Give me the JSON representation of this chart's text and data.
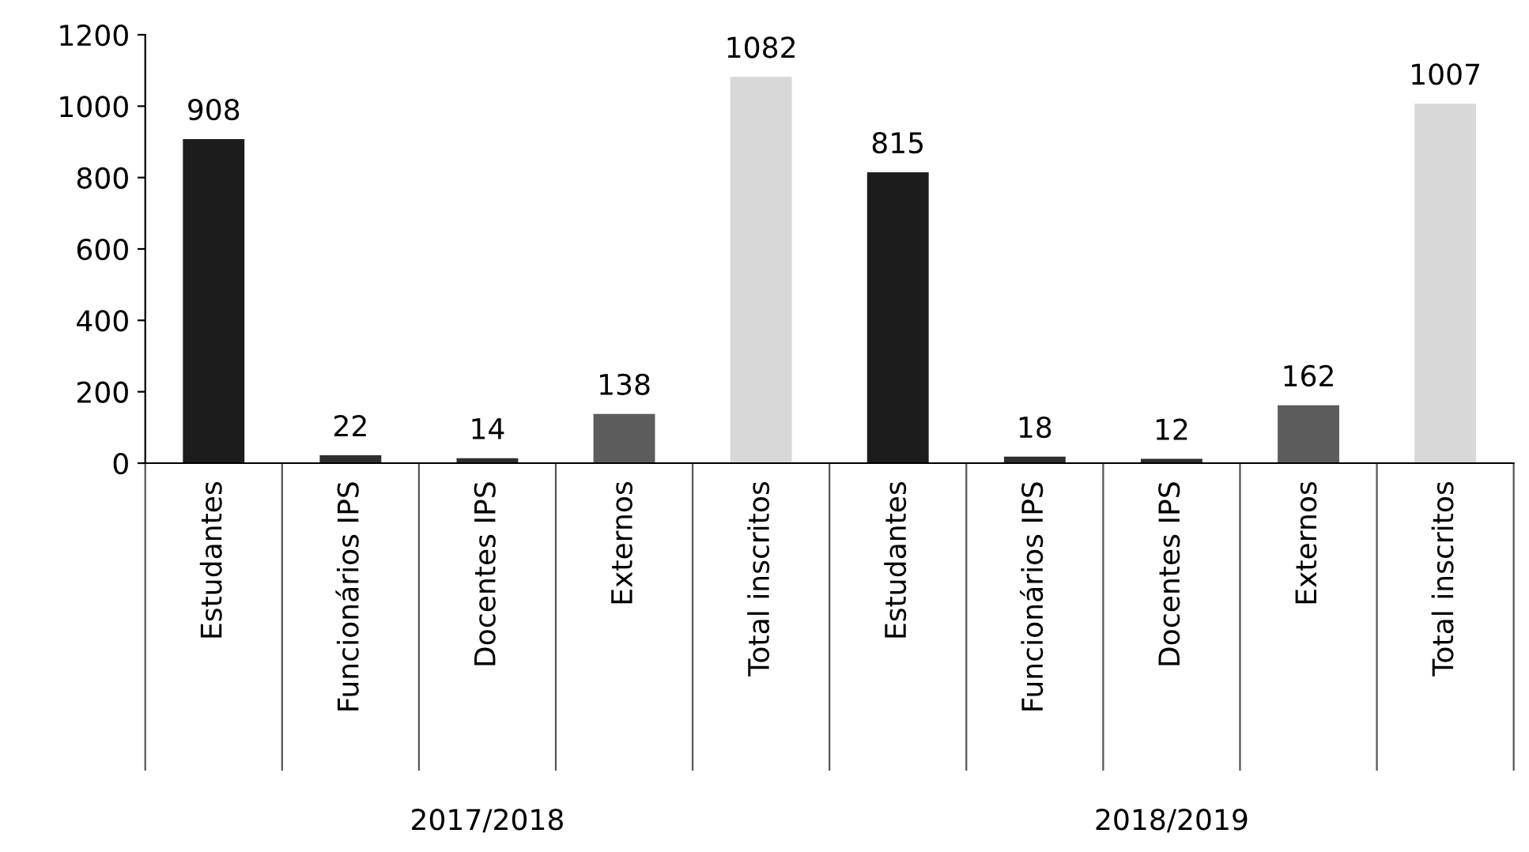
{
  "chart_data": {
    "type": "bar",
    "categories": [
      "Estudantes",
      "Funcionários IPS",
      "Docentes IPS",
      "Externos",
      "Total inscritos",
      "Estudantes",
      "Funcionários IPS",
      "Docentes IPS",
      "Externos",
      "Total inscritos"
    ],
    "values": [
      908,
      22,
      14,
      138,
      1082,
      815,
      18,
      12,
      162,
      1007
    ],
    "colors": [
      "#1c1c1c",
      "#2e2e2e",
      "#2e2e2e",
      "#5c5c5c",
      "#d8d8d8",
      "#1c1c1c",
      "#2e2e2e",
      "#2e2e2e",
      "#5c5c5c",
      "#d8d8d8"
    ],
    "ylim": [
      0,
      1200
    ],
    "yticks": [
      0,
      200,
      400,
      600,
      800,
      1000,
      1200
    ],
    "data_labels": true,
    "grid": false,
    "annotations": [
      "2017/2018",
      "2018/2019"
    ]
  }
}
